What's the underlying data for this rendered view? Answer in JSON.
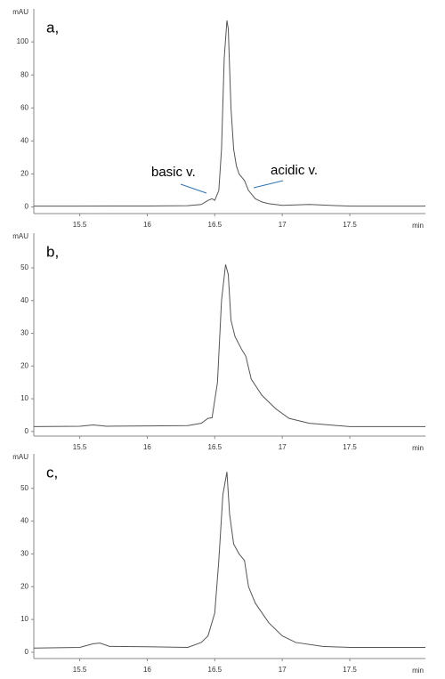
{
  "chart_data": [
    {
      "type": "line",
      "label": "a,",
      "y_label": "mAU",
      "x_label": "min",
      "color": "#555555",
      "annotations": [
        "basic v.",
        "acidic v."
      ],
      "x": [
        15.16,
        15.5,
        16.0,
        16.3,
        16.4,
        16.45,
        16.48,
        16.5,
        16.53,
        16.55,
        16.57,
        16.59,
        16.6,
        16.62,
        16.64,
        16.66,
        16.68,
        16.7,
        16.72,
        16.75,
        16.8,
        16.85,
        16.9,
        17.0,
        17.2,
        17.5,
        18.06
      ],
      "values": [
        0.5,
        0.5,
        0.6,
        0.8,
        1.5,
        4,
        5,
        4,
        10,
        35,
        90,
        113,
        108,
        60,
        35,
        25,
        20,
        18,
        16,
        10,
        5,
        3,
        2,
        1,
        1.5,
        0.5,
        0.5
      ],
      "xlim": [
        15.16,
        18.06
      ],
      "ylim": [
        -4,
        120
      ],
      "xticks": [
        15.5,
        16,
        16.5,
        17,
        17.5
      ],
      "yticks": [
        0,
        20,
        40,
        60,
        80,
        100
      ]
    },
    {
      "type": "line",
      "label": "b,",
      "y_label": "mAU",
      "x_label": "min",
      "color": "#555555",
      "x": [
        15.16,
        15.5,
        15.6,
        15.7,
        16.0,
        16.3,
        16.4,
        16.45,
        16.48,
        16.52,
        16.55,
        16.58,
        16.6,
        16.62,
        16.65,
        16.7,
        16.73,
        16.77,
        16.85,
        16.95,
        17.05,
        17.2,
        17.5,
        18.06
      ],
      "values": [
        1.5,
        1.6,
        2,
        1.6,
        1.7,
        1.8,
        2.5,
        4,
        4.2,
        15,
        40,
        51,
        48,
        34,
        29,
        25,
        23,
        16,
        11,
        7,
        4,
        2.5,
        1.5,
        1.5
      ],
      "xlim": [
        15.16,
        18.06
      ],
      "ylim": [
        -1.4,
        60.6
      ],
      "xticks": [
        15.5,
        16,
        16.5,
        17,
        17.5
      ],
      "yticks": [
        0,
        10,
        20,
        30,
        40,
        50
      ]
    },
    {
      "type": "line",
      "label": "c,",
      "y_label": "mAU",
      "x_label": "min",
      "color": "#555555",
      "x": [
        15.16,
        15.5,
        15.6,
        15.65,
        15.72,
        16.0,
        16.3,
        16.4,
        16.45,
        16.5,
        16.53,
        16.56,
        16.59,
        16.61,
        16.64,
        16.68,
        16.72,
        16.75,
        16.8,
        16.9,
        17.0,
        17.1,
        17.3,
        17.5,
        18.06
      ],
      "values": [
        1.3,
        1.5,
        2.6,
        2.8,
        1.8,
        1.7,
        1.5,
        3,
        5,
        12,
        28,
        48,
        55,
        42,
        33,
        30,
        28,
        20,
        15,
        9,
        5,
        3,
        1.8,
        1.5,
        1.5
      ],
      "xlim": [
        15.16,
        18.06
      ],
      "ylim": [
        -1.9,
        60.5
      ],
      "xticks": [
        15.5,
        16,
        16.5,
        17,
        17.5
      ],
      "yticks": [
        0,
        10,
        20,
        30,
        40,
        50
      ]
    }
  ]
}
